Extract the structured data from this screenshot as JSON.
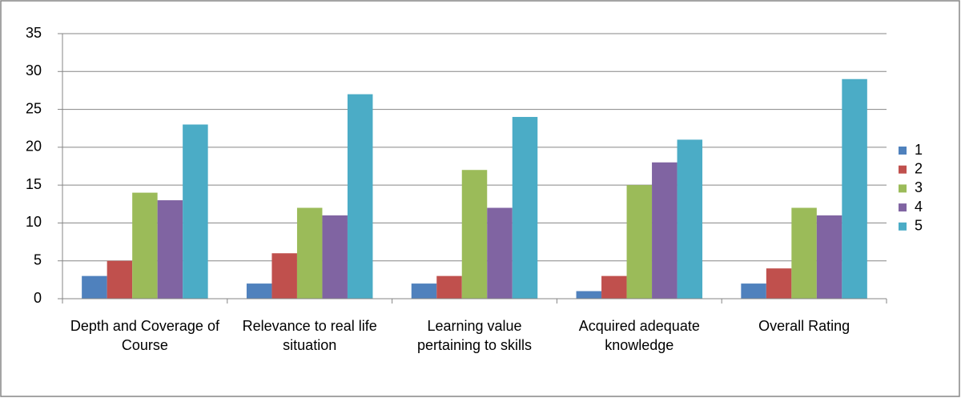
{
  "chart_data": {
    "type": "bar",
    "categories": [
      "Depth and Coverage of Course",
      "Relevance to real life situation",
      "Learning value pertaining to skills",
      "Acquired adequate knowledge",
      "Overall Rating"
    ],
    "series": [
      {
        "name": "1",
        "color": "#4f81bd",
        "values": [
          3,
          2,
          2,
          1,
          2
        ]
      },
      {
        "name": "2",
        "color": "#c0504d",
        "values": [
          5,
          6,
          3,
          3,
          4
        ]
      },
      {
        "name": "3",
        "color": "#9bbb59",
        "values": [
          14,
          12,
          17,
          15,
          12
        ]
      },
      {
        "name": "4",
        "color": "#8064a2",
        "values": [
          13,
          11,
          12,
          18,
          11
        ]
      },
      {
        "name": "5",
        "color": "#4bacc6",
        "values": [
          23,
          27,
          24,
          21,
          29
        ]
      }
    ],
    "ylim": [
      0,
      35
    ],
    "yticks": [
      0,
      5,
      10,
      15,
      20,
      25,
      30,
      35
    ],
    "grid": true,
    "legend": "right"
  }
}
